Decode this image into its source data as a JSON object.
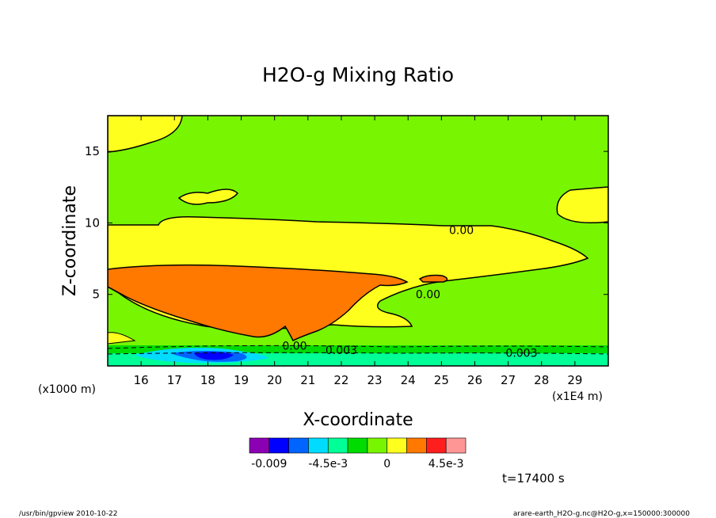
{
  "chart_data": {
    "type": "contour",
    "title": "H2O-g Mixing Ratio",
    "xlabel": "X-coordinate",
    "ylabel": "Z-coordinate",
    "x_unit": "(x1E4 m)",
    "y_unit": "(x1000 m)",
    "xlim": [
      15.0,
      30.0
    ],
    "ylim": [
      0.0,
      17.5
    ],
    "x_ticks": [
      "16",
      "17",
      "18",
      "19",
      "20",
      "21",
      "22",
      "23",
      "24",
      "25",
      "26",
      "27",
      "28",
      "29"
    ],
    "y_ticks": [
      "5",
      "10",
      "15"
    ],
    "contour_labels": [
      {
        "text": "0.00",
        "x": 25.6,
        "z": 9.5
      },
      {
        "text": "0.00",
        "x": 24.6,
        "z": 5.0
      },
      {
        "text": "0.00",
        "x": 20.6,
        "z": 1.4
      },
      {
        "text": "0.003",
        "x": 22.0,
        "z": 1.1
      },
      {
        "text": "0.003",
        "x": 27.4,
        "z": 0.9
      }
    ],
    "colorbar": {
      "colors": [
        "#8c00b4",
        "#0000ff",
        "#0064ff",
        "#00dcff",
        "#00ff96",
        "#00dc00",
        "#78f500",
        "#ffff1e",
        "#ff7800",
        "#ff1e1e",
        "#ff9696"
      ],
      "tick_labels": [
        "-0.009",
        "-4.5e-3",
        "0",
        "4.5e-3"
      ]
    },
    "time_label": "t=17400 s"
  },
  "footer": {
    "left": "/usr/bin/gpview  2010-10-22",
    "right": "arare-earth_H2O-g.nc@H2O-g,x=150000:300000"
  }
}
